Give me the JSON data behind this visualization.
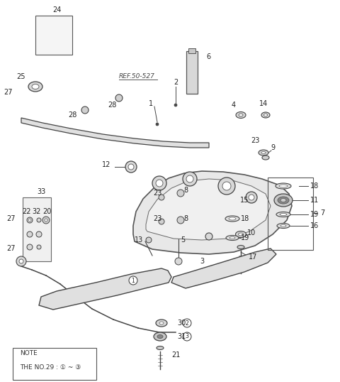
{
  "bg_color": "#ffffff",
  "line_color": "#333333",
  "fig_width": 4.8,
  "fig_height": 5.38,
  "dpi": 100,
  "ref_text": "REF.50-527",
  "note_line1": "NOTE",
  "note_line2": "THE NO.29 : ① ~ ③"
}
